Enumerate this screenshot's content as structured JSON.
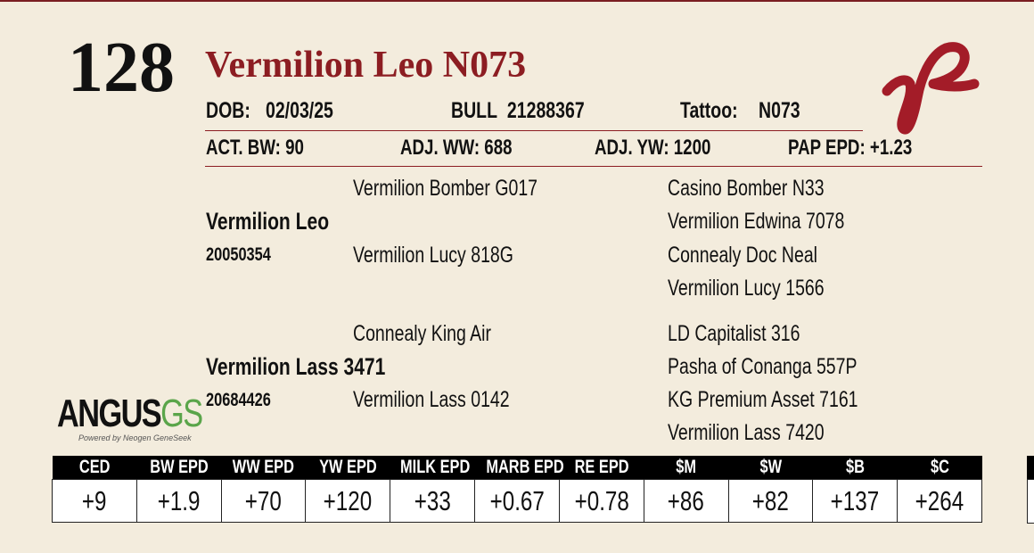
{
  "lot": "128",
  "name": "Vermilion Leo N073",
  "details_row1": [
    {
      "label": "DOB:",
      "value": "02/03/25"
    },
    {
      "label": "BULL",
      "value": "21288367"
    },
    {
      "label": "Tattoo:",
      "value": "N073"
    }
  ],
  "details_row2": [
    {
      "label": "ACT. BW:",
      "value": "90"
    },
    {
      "label": "ADJ. WW:",
      "value": "688"
    },
    {
      "label": "ADJ. YW:",
      "value": "1200"
    },
    {
      "label": "PAP EPD:",
      "value": "+1.23"
    }
  ],
  "pedigree": {
    "sire": {
      "name": "Vermilion Leo",
      "reg": "20050354",
      "parents": [
        "Vermilion Bomber G017",
        "Vermilion Lucy 818G"
      ],
      "grandparents": [
        "Casino Bomber N33",
        "Vermilion Edwina 7078",
        "Connealy Doc Neal",
        "Vermilion Lucy 1566"
      ]
    },
    "dam": {
      "name": "Vermilion Lass 3471",
      "reg": "20684426",
      "parents": [
        "Connealy King Air",
        "Vermilion Lass 0142"
      ],
      "grandparents": [
        "LD Capitalist 316",
        "Pasha of Conanga 557P",
        "KG Premium Asset 7161",
        "Vermilion Lass 7420"
      ]
    }
  },
  "logo": {
    "main": "ANGUS",
    "accent": "GS",
    "tagline": "Powered by Neogen GeneSeek"
  },
  "epd_table": {
    "headers": [
      "CED",
      "BW EPD",
      "WW EPD",
      "YW EPD",
      "MILK EPD",
      "MARB EPD",
      "RE EPD",
      "$M",
      "$W",
      "$B",
      "$C"
    ],
    "values": [
      "+9",
      "+1.9",
      "+70",
      "+120",
      "+33",
      "+0.67",
      "+0.78",
      "+86",
      "+82",
      "+137",
      "+264"
    ]
  }
}
